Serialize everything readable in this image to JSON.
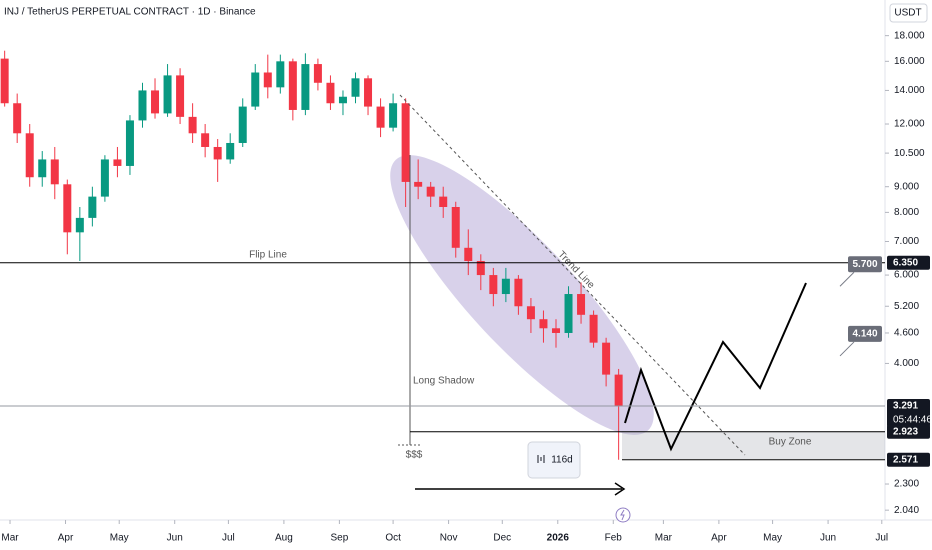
{
  "chart_data": {
    "type": "candlestick",
    "title": "INJ / TetherUS PERPETUAL CONTRACT · 1D · Binance",
    "currency": "USDT",
    "log_scale": true,
    "up_color": "#089981",
    "down_color": "#f23645",
    "x": [
      -3,
      4,
      11,
      18,
      25,
      32,
      39,
      46,
      53,
      60,
      67,
      74,
      81,
      88,
      95,
      102,
      109,
      116,
      123,
      130,
      137,
      144,
      151,
      158,
      165,
      172,
      179,
      186,
      193,
      200,
      207,
      214,
      221,
      228,
      235,
      242,
      249,
      256,
      263,
      270,
      277,
      284,
      291,
      298,
      305,
      312,
      319,
      326,
      333,
      340
    ],
    "open": [
      16.2,
      13.2,
      11.5,
      9.4,
      10.2,
      9.1,
      7.3,
      7.8,
      8.6,
      10.2,
      9.9,
      12.2,
      14,
      12.6,
      15,
      12.4,
      11.5,
      10.8,
      10.2,
      11,
      13,
      15.2,
      14.2,
      16,
      12.8,
      15.8,
      14.5,
      13.2,
      13.6,
      14.8,
      13,
      11.8,
      13.2,
      9.2,
      9,
      8.6,
      8.2,
      6.8,
      6.4,
      6,
      5.5,
      5.9,
      5.2,
      4.9,
      4.7,
      4.6,
      5.5,
      5,
      4.4,
      3.8
    ],
    "high": [
      16.8,
      13.8,
      12,
      10.6,
      10.8,
      9.3,
      8.2,
      9,
      10.4,
      10.8,
      12.5,
      14.5,
      14.8,
      15.8,
      15.5,
      13.2,
      12,
      11.2,
      11.5,
      13.5,
      15.8,
      16.5,
      16.5,
      16.2,
      16.6,
      16.2,
      15,
      14,
      15.2,
      15,
      13.5,
      13.8,
      13.5,
      10.2,
      9.2,
      9,
      8.4,
      7.4,
      6.6,
      6.2,
      6.2,
      6,
      5.4,
      5.1,
      4.9,
      5.7,
      5.8,
      5.1,
      4.5,
      3.9
    ],
    "low": [
      13,
      11,
      9,
      9,
      8.5,
      6.6,
      6.4,
      7.5,
      8.4,
      9.4,
      9.5,
      11.8,
      12.3,
      12.4,
      12,
      11,
      10.3,
      9.2,
      10,
      10.8,
      12.8,
      13.5,
      13.8,
      12.2,
      12.5,
      14,
      12.8,
      12.5,
      13.2,
      12.5,
      11.3,
      11.6,
      8.2,
      8.5,
      8.2,
      7.8,
      6.5,
      6,
      5.6,
      5.2,
      5.3,
      5,
      4.6,
      4.4,
      4.3,
      4.5,
      4.8,
      4.3,
      3.6,
      2.571
    ],
    "close": [
      13.2,
      11.5,
      9.4,
      10.2,
      9.1,
      7.3,
      7.8,
      8.6,
      10.2,
      9.9,
      12.2,
      14,
      12.6,
      15,
      12.4,
      11.5,
      10.8,
      10.2,
      11,
      13,
      15.2,
      14.2,
      16,
      12.8,
      15.8,
      14.5,
      13.2,
      13.6,
      14.8,
      13,
      11.8,
      13.2,
      9.2,
      9,
      8.6,
      8.2,
      6.8,
      6.4,
      6,
      5.5,
      5.9,
      5.2,
      4.9,
      4.7,
      4.6,
      5.5,
      5,
      4.4,
      3.8,
      3.291
    ],
    "xlim": [
      -5.6,
      488.8
    ],
    "ylim": [
      1.95,
      21.2
    ],
    "xticks": [
      {
        "value": 0,
        "label": "Mar"
      },
      {
        "value": 31,
        "label": "Apr"
      },
      {
        "value": 61,
        "label": "May"
      },
      {
        "value": 92,
        "label": "Jun"
      },
      {
        "value": 122,
        "label": "Jul"
      },
      {
        "value": 153,
        "label": "Aug"
      },
      {
        "value": 184,
        "label": "Sep"
      },
      {
        "value": 214,
        "label": "Oct"
      },
      {
        "value": 245,
        "label": "Nov"
      },
      {
        "value": 275,
        "label": "Dec"
      },
      {
        "value": 306,
        "label": "2026"
      },
      {
        "value": 337,
        "label": "Feb"
      },
      {
        "value": 365,
        "label": "Mar"
      },
      {
        "value": 396,
        "label": "Apr"
      },
      {
        "value": 426,
        "label": "May"
      },
      {
        "value": 457,
        "label": "Jun"
      },
      {
        "value": 487,
        "label": "Jul"
      }
    ],
    "yticks": [
      {
        "value": 18,
        "label": "18.000"
      },
      {
        "value": 16,
        "label": "16.000"
      },
      {
        "value": 14,
        "label": "14.000"
      },
      {
        "value": 12,
        "label": "12.000"
      },
      {
        "value": 10.5,
        "label": "10.500"
      },
      {
        "value": 9,
        "label": "9.000"
      },
      {
        "value": 8,
        "label": "8.000"
      },
      {
        "value": 7,
        "label": "7.000"
      },
      {
        "value": 6,
        "label": "6.000"
      },
      {
        "value": 5.2,
        "label": "5.200"
      },
      {
        "value": 4.6,
        "label": "4.600"
      },
      {
        "value": 4,
        "label": "4.000"
      },
      {
        "value": 2.3,
        "label": "2.300"
      },
      {
        "value": 2.04,
        "label": "2.040"
      }
    ],
    "levels": [
      {
        "value": 6.35,
        "label": "6.350"
      },
      {
        "value": 3.291,
        "label": "3.291"
      },
      {
        "value": 2.923,
        "label": "2.923"
      },
      {
        "value": 2.571,
        "label": "2.571"
      }
    ],
    "countdown": "05:44:46",
    "targets": [
      {
        "value": 5.7,
        "label": "5.700"
      },
      {
        "value": 4.14,
        "label": "4.140"
      }
    ],
    "annotations": {
      "flip_line": "Flip Line",
      "trend_line": "Trend Line",
      "long_shadow": "Long Shadow",
      "liquidity": "$$$",
      "buy_zone": "Buy Zone",
      "duration": "116d"
    }
  }
}
